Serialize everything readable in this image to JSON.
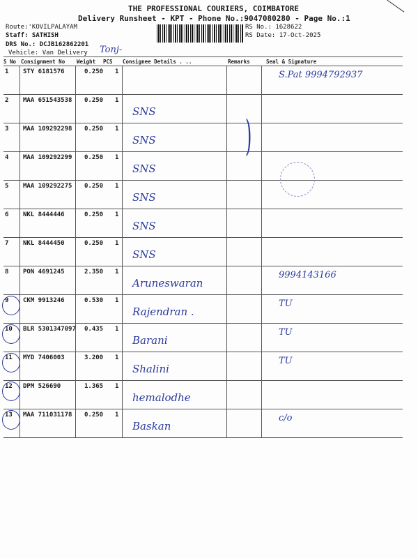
{
  "header": {
    "company": "THE PROFESSIONAL COURIERS, COIMBATORE",
    "subtitle": "Delivery Runsheet - KPT - Phone No.:9047080280 - Page No.:1",
    "route": "Route:'KOVILPALAYAM",
    "staff": "Staff: SATHISH",
    "drs": "DRS No.: DCJB162862201",
    "vehicle": "Vehicle: Van Delivery",
    "rs_no": "RS No.: 1628622",
    "rs_date": "RS Date: 17-Oct-2025",
    "vehicle_note": "Tonj-"
  },
  "columns": [
    "S No",
    "Consignment No",
    "Weight",
    "PCS",
    "Consignee Details . ..",
    "Remarks",
    "Seal & Signature"
  ],
  "rows": [
    {
      "sno": "1",
      "cn": "STY 6181576",
      "wt": "0.250",
      "pcs": "1",
      "consignee": "",
      "seal": "S.Pat 9994792937"
    },
    {
      "sno": "2",
      "cn": "MAA 651543538",
      "wt": "0.250",
      "pcs": "1",
      "consignee": "SNS",
      "seal": ""
    },
    {
      "sno": "3",
      "cn": "MAA 109292298",
      "wt": "0.250",
      "pcs": "1",
      "consignee": "SNS",
      "seal": ""
    },
    {
      "sno": "4",
      "cn": "MAA 109292299",
      "wt": "0.250",
      "pcs": "1",
      "consignee": "SNS",
      "seal": ""
    },
    {
      "sno": "5",
      "cn": "MAA 109292275",
      "wt": "0.250",
      "pcs": "1",
      "consignee": "SNS",
      "seal": ""
    },
    {
      "sno": "6",
      "cn": "NKL 8444446",
      "wt": "0.250",
      "pcs": "1",
      "consignee": "SNS",
      "seal": ""
    },
    {
      "sno": "7",
      "cn": "NKL 8444450",
      "wt": "0.250",
      "pcs": "1",
      "consignee": "SNS",
      "seal": ""
    },
    {
      "sno": "8",
      "cn": "PON 4691245",
      "wt": "2.350",
      "pcs": "1",
      "consignee": "Aruneswaran",
      "seal": "9994143166"
    },
    {
      "sno": "9",
      "cn": "CKM 9913246",
      "wt": "0.530",
      "pcs": "1",
      "consignee": "Rajendran .",
      "seal": "TU"
    },
    {
      "sno": "10",
      "cn": "BLR 5301347097",
      "wt": "0.435",
      "pcs": "1",
      "consignee": "Barani",
      "seal": "TU"
    },
    {
      "sno": "11",
      "cn": "MYD 7406003",
      "wt": "3.200",
      "pcs": "1",
      "consignee": "Shalini",
      "seal": "TU"
    },
    {
      "sno": "12",
      "cn": "DPM 526690",
      "wt": "1.365",
      "pcs": "1",
      "consignee": "hemalodhe",
      "seal": ""
    },
    {
      "sno": "13",
      "cn": "MAA 711031178",
      "wt": "0.250",
      "pcs": "1",
      "consignee": "Baskan",
      "seal": "c/o"
    }
  ]
}
